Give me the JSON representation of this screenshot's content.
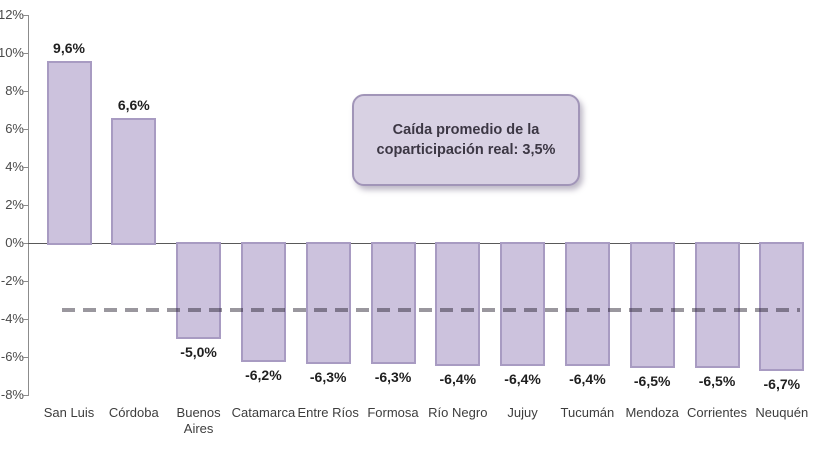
{
  "chart_data": {
    "type": "bar",
    "categories": [
      "San Luis",
      "Córdoba",
      "Buenos Aires",
      "Catamarca",
      "Entre Ríos",
      "Formosa",
      "Río Negro",
      "Jujuy",
      "Tucumán",
      "Mendoza",
      "Corrientes",
      "Neuquén"
    ],
    "values": [
      9.6,
      6.6,
      -5.0,
      -6.2,
      -6.3,
      -6.3,
      -6.4,
      -6.4,
      -6.4,
      -6.5,
      -6.5,
      -6.7
    ],
    "value_labels": [
      "9,6%",
      "6,6%",
      "-5,0%",
      "-6,2%",
      "-6,3%",
      "-6,3%",
      "-6,4%",
      "-6,4%",
      "-6,4%",
      "-6,5%",
      "-6,5%",
      "-6,7%"
    ],
    "title": "",
    "xlabel": "",
    "ylabel": "",
    "grid": false,
    "legend": null,
    "y_axis": {
      "min": -8,
      "max": 12,
      "step": 2,
      "tick_labels": [
        "12%",
        "10%",
        "8%",
        "6%",
        "4%",
        "2%",
        "0%",
        "-2%",
        "-4%",
        "-6%",
        "-8%"
      ]
    },
    "average_line": {
      "value": -3.5,
      "style": "dashed"
    },
    "annotation": {
      "line1": "Caída promedio de la",
      "line2_prefix": "coparticipación real: ",
      "line2_value": "3,5%"
    },
    "colors": {
      "bar_fill": "#ccc2dd",
      "bar_border": "#a89bc2",
      "annotation_fill": "#d8d1e3",
      "annotation_border": "#a195b8",
      "dashed_line": "rgba(30,25,40,0.45)",
      "axis": "#8c8c8c",
      "zero_line": "#595959"
    }
  }
}
